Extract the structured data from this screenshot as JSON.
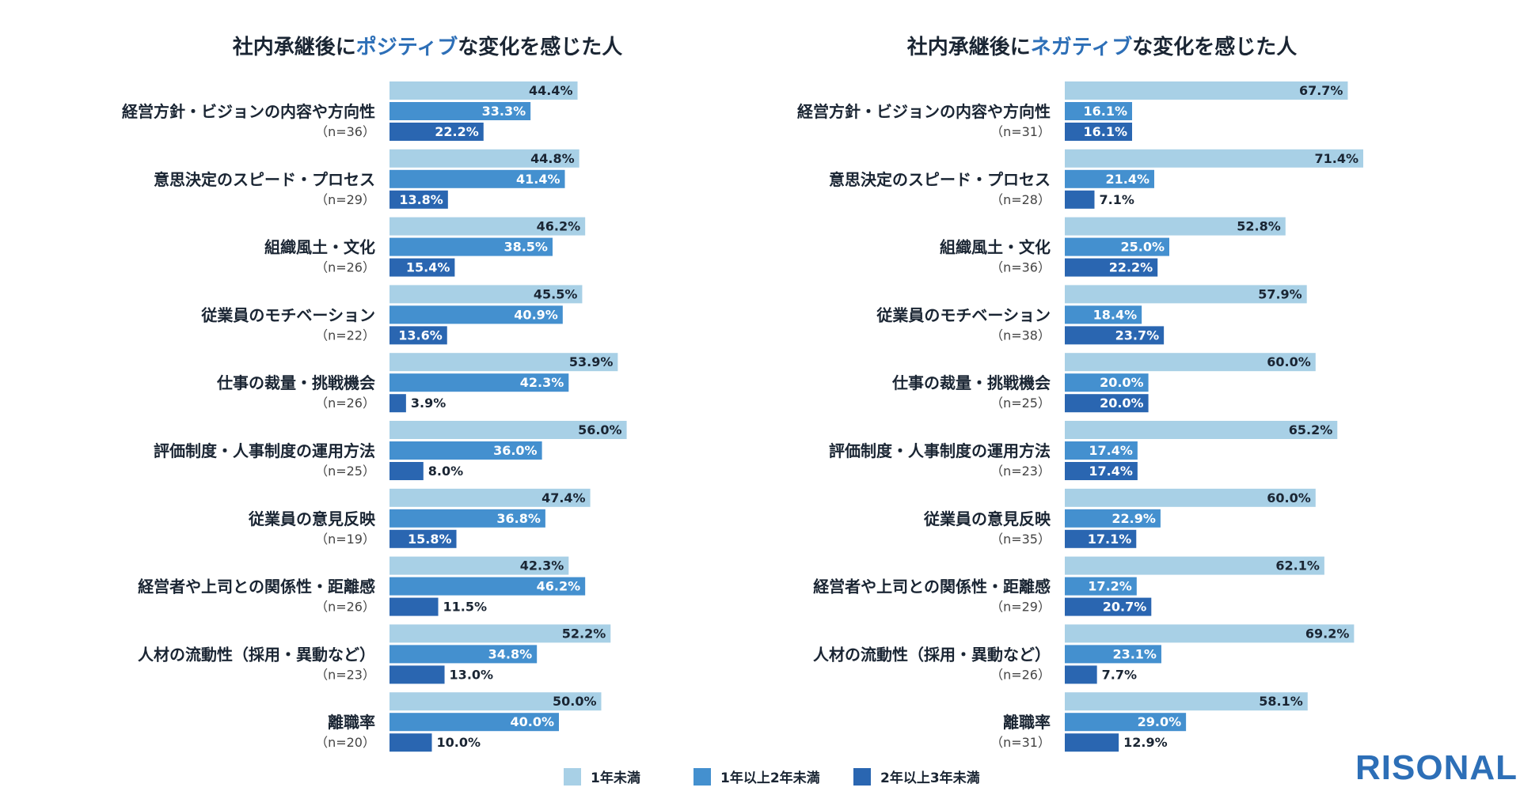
{
  "chart_data": [
    {
      "type": "bar",
      "orientation": "horizontal",
      "title_parts": [
        "社内承継後に",
        "ポジティブ",
        "な変化を感じた人"
      ],
      "categories": [
        "経営方針・ビジョンの内容や方向性",
        "意思決定のスピード・プロセス",
        "組織風土・文化",
        "従業員のモチベーション",
        "仕事の裁量・挑戦機会",
        "評価制度・人事制度の運用方法",
        "従業員の意見反映",
        "経営者や上司との関係性・距離感",
        "人材の流動性（採用・異動など）",
        "離職率"
      ],
      "n_labels": [
        "（n=36）",
        "（n=29）",
        "（n=26）",
        "（n=22）",
        "（n=26）",
        "（n=25）",
        "（n=19）",
        "（n=26）",
        "（n=23）",
        "（n=20）"
      ],
      "series": [
        {
          "name": "1年未満",
          "values": [
            44.4,
            44.8,
            46.2,
            45.5,
            53.9,
            56.0,
            47.4,
            42.3,
            52.2,
            50.0
          ],
          "labels": [
            "44.4%",
            "44.8%",
            "46.2%",
            "45.5%",
            "53.9%",
            "56.0%",
            "47.4%",
            "42.3%",
            "52.2%",
            "50.0%"
          ]
        },
        {
          "name": "1年以上2年未満",
          "values": [
            33.3,
            41.4,
            38.5,
            40.9,
            42.3,
            36.0,
            36.8,
            46.2,
            34.8,
            40.0
          ],
          "labels": [
            "33.3%",
            "41.4%",
            "38.5%",
            "40.9%",
            "42.3%",
            "36.0%",
            "36.8%",
            "46.2%",
            "34.8%",
            "40.0%"
          ]
        },
        {
          "name": "2年以上3年未満",
          "values": [
            22.2,
            13.8,
            15.4,
            13.6,
            3.9,
            8.0,
            15.8,
            11.5,
            13.0,
            10.0
          ],
          "labels": [
            "22.2%",
            "13.8%",
            "15.4%",
            "13.6%",
            "3.9%",
            "8.0%",
            "15.8%",
            "11.5%",
            "13.0%",
            "10.0%"
          ]
        }
      ]
    },
    {
      "type": "bar",
      "orientation": "horizontal",
      "title_parts": [
        "社内承継後に",
        "ネガティブ",
        "な変化を感じた人"
      ],
      "categories": [
        "経営方針・ビジョンの内容や方向性",
        "意思決定のスピード・プロセス",
        "組織風土・文化",
        "従業員のモチベーション",
        "仕事の裁量・挑戦機会",
        "評価制度・人事制度の運用方法",
        "従業員の意見反映",
        "経営者や上司との関係性・距離感",
        "人材の流動性（採用・異動など）",
        "離職率"
      ],
      "n_labels": [
        "（n=31）",
        "（n=28）",
        "（n=36）",
        "（n=38）",
        "（n=25）",
        "（n=23）",
        "（n=35）",
        "（n=29）",
        "（n=26）",
        "（n=31）"
      ],
      "series": [
        {
          "name": "1年未満",
          "values": [
            67.7,
            71.4,
            52.8,
            57.9,
            60.0,
            65.2,
            60.0,
            62.1,
            69.2,
            58.1
          ],
          "labels": [
            "67.7%",
            "71.4%",
            "52.8%",
            "57.9%",
            "60.0%",
            "65.2%",
            "60.0%",
            "62.1%",
            "69.2%",
            "58.1%"
          ]
        },
        {
          "name": "1年以上2年未満",
          "values": [
            16.1,
            21.4,
            25.0,
            18.4,
            20.0,
            17.4,
            22.9,
            17.2,
            23.1,
            29.0
          ],
          "labels": [
            "16.1%",
            "21.4%",
            "25.0%",
            "18.4%",
            "20.0%",
            "17.4%",
            "22.9%",
            "17.2%",
            "23.1%",
            "29.0%"
          ]
        },
        {
          "name": "2年以上3年未満",
          "values": [
            16.1,
            7.1,
            22.2,
            23.7,
            20.0,
            17.4,
            17.1,
            20.7,
            7.7,
            12.9
          ],
          "labels": [
            "16.1%",
            "7.1%",
            "22.2%",
            "23.7%",
            "20.0%",
            "17.4%",
            "17.1%",
            "20.7%",
            "7.7%",
            "12.9%"
          ]
        }
      ]
    }
  ],
  "legend": [
    {
      "label": "1年未満",
      "color": "#a8d0e6"
    },
    {
      "label": "1年以上2年未満",
      "color": "#4490cf"
    },
    {
      "label": "2年以上3年未満",
      "color": "#2a66b1"
    }
  ],
  "colors": {
    "accent": "#2d6fb7",
    "text": "#1a2533",
    "muted": "#444444"
  },
  "brand": "RISONAL"
}
